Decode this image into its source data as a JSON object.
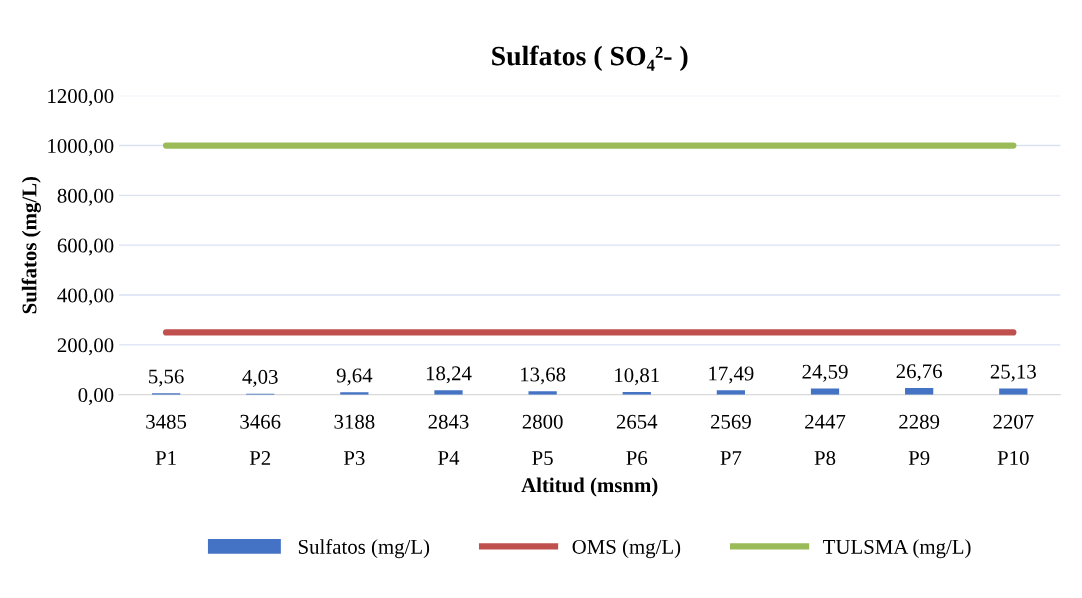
{
  "chart_data": {
    "type": "bar",
    "title": "Sulfatos ( SO₄²- )",
    "xlabel": "Altitud (msnm)",
    "ylabel": "Sulfatos (mg/L)",
    "categories": [
      "3485\nP1",
      "3466\nP2",
      "3188\nP3",
      "2843\nP4",
      "2800\nP5",
      "2654\nP6",
      "2569\nP7",
      "2447\nP8",
      "2289\nP9",
      "2207\nP10"
    ],
    "series": [
      {
        "name": "Sulfatos (mg/L)",
        "color": "#4472c4",
        "values": [
          5.56,
          4.03,
          9.64,
          18.24,
          13.68,
          10.81,
          17.49,
          24.59,
          26.76,
          25.13
        ],
        "value_labels": [
          "5,56",
          "4,03",
          "9,64",
          "18,24",
          "13,68",
          "10,81",
          "17,49",
          "24,59",
          "26,76",
          "25,13"
        ]
      },
      {
        "name": "OMS (mg/L)",
        "type": "line",
        "color": "#c0504d",
        "values": [
          250,
          250,
          250,
          250,
          250,
          250,
          250,
          250,
          250,
          250
        ]
      },
      {
        "name": "TULSMA (mg/L)",
        "type": "line",
        "color": "#9bbb59",
        "values": [
          1000,
          1000,
          1000,
          1000,
          1000,
          1000,
          1000,
          1000,
          1000,
          1000
        ]
      }
    ],
    "ylim": [
      0,
      1200
    ],
    "yticks": [
      {
        "value": 0,
        "label": "0,00"
      },
      {
        "value": 200,
        "label": "200,00"
      },
      {
        "value": 400,
        "label": "400,00"
      },
      {
        "value": 600,
        "label": "600,00"
      },
      {
        "value": 800,
        "label": "800,00"
      },
      {
        "value": 1000,
        "label": "1000,00"
      },
      {
        "value": 1200,
        "label": "1200,00"
      }
    ],
    "grid": "y",
    "legend": "bottom"
  }
}
